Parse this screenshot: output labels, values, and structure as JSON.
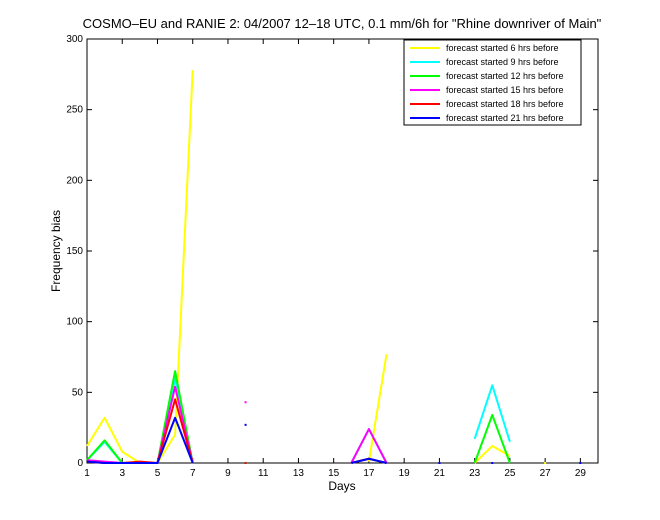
{
  "chart_data": {
    "type": "line",
    "title": "COSMO–EU and RANIE 2: 04/2007 12–18 UTC, 0.1 mm/6h for \"Rhine downriver of Main\"",
    "xlabel": "Days",
    "ylabel": "Frequency bias",
    "xlim": [
      1,
      30
    ],
    "ylim": [
      0,
      300
    ],
    "xticks": [
      1,
      3,
      5,
      7,
      9,
      11,
      13,
      15,
      17,
      19,
      21,
      23,
      25,
      27,
      29
    ],
    "yticks": [
      0,
      50,
      100,
      150,
      200,
      250,
      300
    ],
    "grid": false,
    "legend_position": "top-right",
    "series": [
      {
        "name": "forecast started 6 hrs before",
        "color": "#ffff00",
        "values": [
          12,
          32,
          8,
          0,
          0,
          20,
          278,
          null,
          null,
          0,
          null,
          null,
          null,
          null,
          null,
          null,
          1,
          77,
          null,
          null,
          null,
          null,
          0,
          12,
          5,
          null,
          0,
          null,
          null,
          null
        ]
      },
      {
        "name": "forecast started 9 hrs before",
        "color": "#00ffff",
        "values": [
          2,
          15,
          0,
          0,
          0,
          60,
          0,
          null,
          null,
          0,
          null,
          null,
          null,
          null,
          null,
          0,
          24,
          0,
          null,
          null,
          null,
          null,
          17,
          55,
          15,
          null,
          null,
          null,
          null,
          null
        ]
      },
      {
        "name": "forecast started 12 hrs before",
        "color": "#00ff00",
        "values": [
          2,
          16,
          0,
          0,
          0,
          65,
          0,
          null,
          null,
          0,
          null,
          null,
          null,
          null,
          null,
          0,
          3,
          0,
          null,
          null,
          null,
          null,
          0,
          34,
          0,
          null,
          null,
          null,
          null,
          null
        ]
      },
      {
        "name": "forecast started 15 hrs before",
        "color": "#ff00ff",
        "values": [
          2,
          1,
          0,
          0,
          0,
          54,
          0,
          null,
          null,
          43,
          null,
          null,
          null,
          null,
          null,
          0,
          24,
          0,
          null,
          null,
          null,
          null,
          null,
          null,
          null,
          null,
          null,
          null,
          null,
          null
        ]
      },
      {
        "name": "forecast started 18 hrs before",
        "color": "#ff0000",
        "values": [
          1,
          0,
          0,
          1,
          0,
          45,
          0,
          null,
          null,
          0,
          null,
          null,
          null,
          null,
          null,
          0,
          3,
          0,
          null,
          null,
          null,
          null,
          null,
          null,
          null,
          null,
          null,
          null,
          null,
          null
        ]
      },
      {
        "name": "forecast started 21 hrs before",
        "color": "#0000ff",
        "values": [
          1,
          0,
          0,
          0,
          0,
          32,
          0,
          null,
          null,
          27,
          null,
          null,
          null,
          null,
          null,
          0,
          3,
          0,
          null,
          null,
          0,
          null,
          null,
          0,
          null,
          null,
          null,
          null,
          0,
          null
        ]
      }
    ]
  }
}
